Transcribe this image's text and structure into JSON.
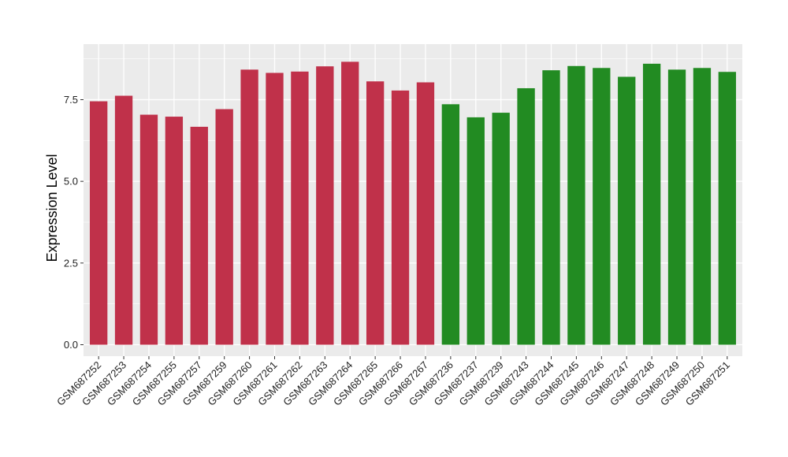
{
  "chart_data": {
    "type": "bar",
    "title": "",
    "xlabel": "",
    "ylabel": "Expression Level",
    "ylim": [
      -0.35,
      9.2
    ],
    "yticks": [
      0.0,
      2.5,
      5.0,
      7.5
    ],
    "ytick_labels": [
      "0.0",
      "2.5",
      "5.0",
      "7.5"
    ],
    "grid": true,
    "legend": "none",
    "categories": [
      "GSM687252",
      "GSM687253",
      "GSM687254",
      "GSM687255",
      "GSM687257",
      "GSM687259",
      "GSM687260",
      "GSM687261",
      "GSM687262",
      "GSM687263",
      "GSM687264",
      "GSM687265",
      "GSM687266",
      "GSM687267",
      "GSM687236",
      "GSM687237",
      "GSM687239",
      "GSM687243",
      "GSM687244",
      "GSM687245",
      "GSM687246",
      "GSM687247",
      "GSM687248",
      "GSM687249",
      "GSM687250",
      "GSM687251"
    ],
    "values": [
      7.45,
      7.62,
      7.04,
      6.98,
      6.67,
      7.21,
      8.42,
      8.32,
      8.36,
      8.52,
      8.66,
      8.06,
      7.78,
      8.03,
      7.36,
      6.96,
      7.1,
      7.85,
      8.4,
      8.53,
      8.47,
      8.2,
      8.6,
      8.42,
      8.47,
      8.35
    ],
    "bar_colors": [
      "#c0314a",
      "#c0314a",
      "#c0314a",
      "#c0314a",
      "#c0314a",
      "#c0314a",
      "#c0314a",
      "#c0314a",
      "#c0314a",
      "#c0314a",
      "#c0314a",
      "#c0314a",
      "#c0314a",
      "#c0314a",
      "#228b22",
      "#228b22",
      "#228b22",
      "#228b22",
      "#228b22",
      "#228b22",
      "#228b22",
      "#228b22",
      "#228b22",
      "#228b22",
      "#228b22",
      "#228b22"
    ],
    "panel_background": "#ebebeb",
    "gridline_color": "#ffffff"
  }
}
